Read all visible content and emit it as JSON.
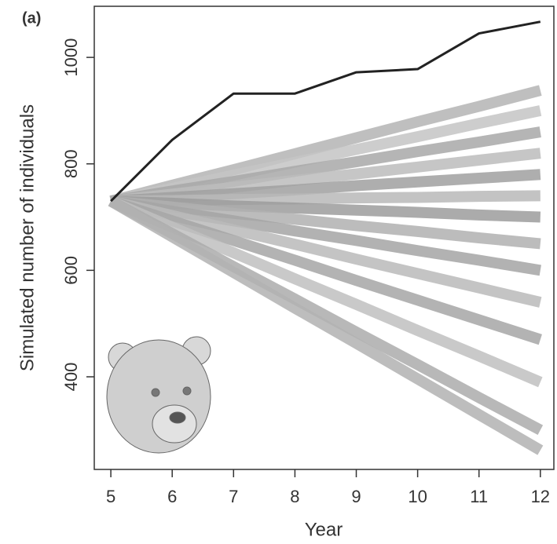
{
  "chart_data": {
    "type": "line",
    "panel_label": "(a)",
    "x_label": "Year",
    "y_label": "Simulated number of individuals",
    "x": [
      5,
      6,
      7,
      8,
      9,
      10,
      11,
      12
    ],
    "xlim": [
      4.73,
      12.22
    ],
    "xticks": [
      5,
      6,
      7,
      8,
      9,
      10,
      11,
      12
    ],
    "ylim": [
      226,
      1096
    ],
    "yticks": [
      400,
      600,
      800,
      1000
    ],
    "series": [
      {
        "color": "#b4b4b4",
        "values": [
          730,
          760,
          789,
          819,
          849,
          879,
          908,
          938
        ]
      },
      {
        "color": "#c4c4c4",
        "values": [
          730,
          754,
          779,
          803,
          827,
          851,
          876,
          900
        ]
      },
      {
        "color": "#a8a8a8",
        "values": [
          730,
          749,
          767,
          786,
          804,
          823,
          841,
          860
        ]
      },
      {
        "color": "#bcbcbc",
        "values": [
          730,
          743,
          756,
          769,
          781,
          794,
          807,
          820
        ]
      },
      {
        "color": "#a0a0a0",
        "values": [
          730,
          737,
          744,
          751,
          759,
          766,
          773,
          780
        ]
      },
      {
        "color": "#b8b8b8",
        "values": [
          730,
          731,
          733,
          734,
          736,
          737,
          739,
          740
        ]
      },
      {
        "color": "#9c9c9c",
        "values": [
          730,
          726,
          721,
          717,
          713,
          709,
          704,
          700
        ]
      },
      {
        "color": "#b0b0b0",
        "values": [
          730,
          719,
          707,
          696,
          684,
          673,
          661,
          650
        ]
      },
      {
        "color": "#a4a4a4",
        "values": [
          730,
          711,
          693,
          674,
          656,
          637,
          619,
          600
        ]
      },
      {
        "color": "#bababa",
        "values": [
          730,
          703,
          676,
          649,
          621,
          594,
          567,
          540
        ]
      },
      {
        "color": "#a6a6a6",
        "values": [
          730,
          693,
          656,
          619,
          581,
          544,
          507,
          470
        ]
      },
      {
        "color": "#c0c0c0",
        "values": [
          730,
          681,
          633,
          584,
          536,
          487,
          439,
          390
        ]
      },
      {
        "color": "#acacac",
        "values": [
          730,
          669,
          607,
          546,
          484,
          423,
          361,
          300
        ]
      },
      {
        "color": "#b2b2b2",
        "values": [
          730,
          663,
          596,
          529,
          463,
          396,
          329,
          262
        ]
      },
      {
        "color": "#222222",
        "values": [
          730,
          845,
          932,
          932,
          972,
          978,
          1045,
          1067
        ],
        "width": 3
      }
    ]
  }
}
